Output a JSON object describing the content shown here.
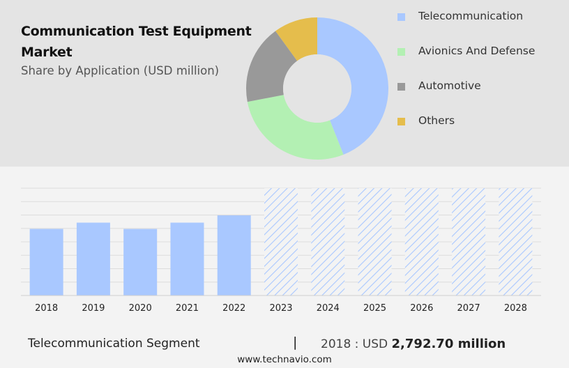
{
  "header": {
    "title": "Communication Test Equipment Market",
    "subtitle": "Share by Application (USD million)"
  },
  "legend": [
    {
      "label": "Telecommunication",
      "color": "#a9c8ff"
    },
    {
      "label": "Avionics And Defense",
      "color": "#b3f0b3"
    },
    {
      "label": "Automotive",
      "color": "#999999"
    },
    {
      "label": "Others",
      "color": "#e5bd4c"
    }
  ],
  "chart_data": [
    {
      "type": "pie",
      "categories": [
        "Telecommunication",
        "Avionics And Defense",
        "Automotive",
        "Others"
      ],
      "values": [
        44,
        28,
        18,
        10
      ],
      "colors": [
        "#a9c8ff",
        "#b3f0b3",
        "#999999",
        "#e5bd4c"
      ],
      "donut": true
    },
    {
      "type": "bar",
      "categories": [
        "2018",
        "2019",
        "2020",
        "2021",
        "2022",
        "2023",
        "2024",
        "2025",
        "2026",
        "2027",
        "2028"
      ],
      "values": [
        2792.7,
        3055,
        2790,
        3055,
        3360,
        null,
        null,
        null,
        null,
        null,
        null
      ],
      "forecast_categories": [
        "2023",
        "2024",
        "2025",
        "2026",
        "2027",
        "2028"
      ],
      "ylim": [
        0,
        4500
      ],
      "grid": true,
      "bar_color": "#a9c8ff",
      "forecast_style": "hatched"
    }
  ],
  "footer": {
    "segment_label": "Telecommunication Segment",
    "divider": "|",
    "year_prefix": "2018 : USD",
    "value": "2,792.70 million"
  },
  "source": "www.technavio.com"
}
